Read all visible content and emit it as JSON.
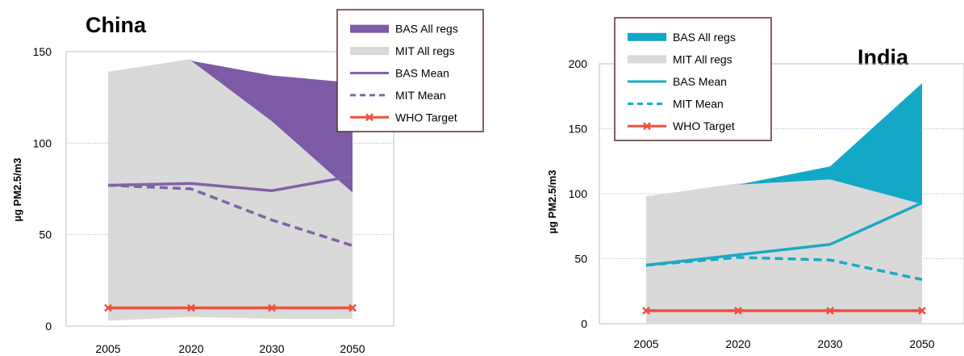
{
  "chart_data": [
    {
      "type": "area",
      "title": "China",
      "ylabel": "µg PM2.5/m3",
      "xlabel": "",
      "categories": [
        "2005",
        "2020",
        "2030",
        "2050"
      ],
      "ylim": [
        0,
        150
      ],
      "yticks": [
        "0",
        "50",
        "100",
        "150"
      ],
      "grid": "horizontal dotted",
      "legend_position": "top-right",
      "accent_color": "#8063a8",
      "series": [
        {
          "name": "BAS All regs",
          "kind": "band",
          "color": "#7d5ba6",
          "low": [
            null,
            145,
            112,
            73
          ],
          "high": [
            null,
            145,
            137,
            133
          ]
        },
        {
          "name": "MIT All regs",
          "kind": "band",
          "color": "#d9d9d9",
          "low": [
            3,
            5,
            4,
            4
          ],
          "high": [
            139,
            146,
            114,
            83
          ]
        },
        {
          "name": "BAS Mean",
          "kind": "line",
          "color": "#8063a8",
          "values": [
            77,
            78,
            74,
            82
          ]
        },
        {
          "name": "MIT Mean",
          "kind": "dashed",
          "color": "#8063a8",
          "values": [
            77,
            75,
            58,
            44
          ]
        },
        {
          "name": "WHO Target",
          "kind": "marker",
          "color": "#f04e3c",
          "values": [
            10,
            10,
            10,
            10
          ]
        }
      ]
    },
    {
      "type": "area",
      "title": "India",
      "ylabel": "µg PM2.5/m3",
      "xlabel": "",
      "categories": [
        "2005",
        "2020",
        "2030",
        "2050"
      ],
      "ylim": [
        0,
        200
      ],
      "yticks": [
        "0",
        "50",
        "100",
        "150",
        "200"
      ],
      "grid": "horizontal dotted",
      "legend_position": "top-left",
      "accent_color": "#1aa9c6",
      "series": [
        {
          "name": "BAS All regs",
          "kind": "band",
          "color": "#12a8c6",
          "low": [
            null,
            107,
            111,
            92
          ],
          "high": [
            null,
            107,
            121,
            185
          ]
        },
        {
          "name": "MIT All regs",
          "kind": "band",
          "color": "#d9d9d9",
          "low": [
            0,
            0,
            0,
            0
          ],
          "high": [
            98,
            108,
            112,
            93
          ]
        },
        {
          "name": "BAS Mean",
          "kind": "line",
          "color": "#1aa9c6",
          "values": [
            45,
            53,
            61,
            93
          ]
        },
        {
          "name": "MIT Mean",
          "kind": "dashed",
          "color": "#1aa9c6",
          "values": [
            45,
            51,
            49,
            34
          ]
        },
        {
          "name": "WHO Target",
          "kind": "marker",
          "color": "#f04e3c",
          "values": [
            10,
            10,
            10,
            10
          ]
        }
      ]
    }
  ]
}
